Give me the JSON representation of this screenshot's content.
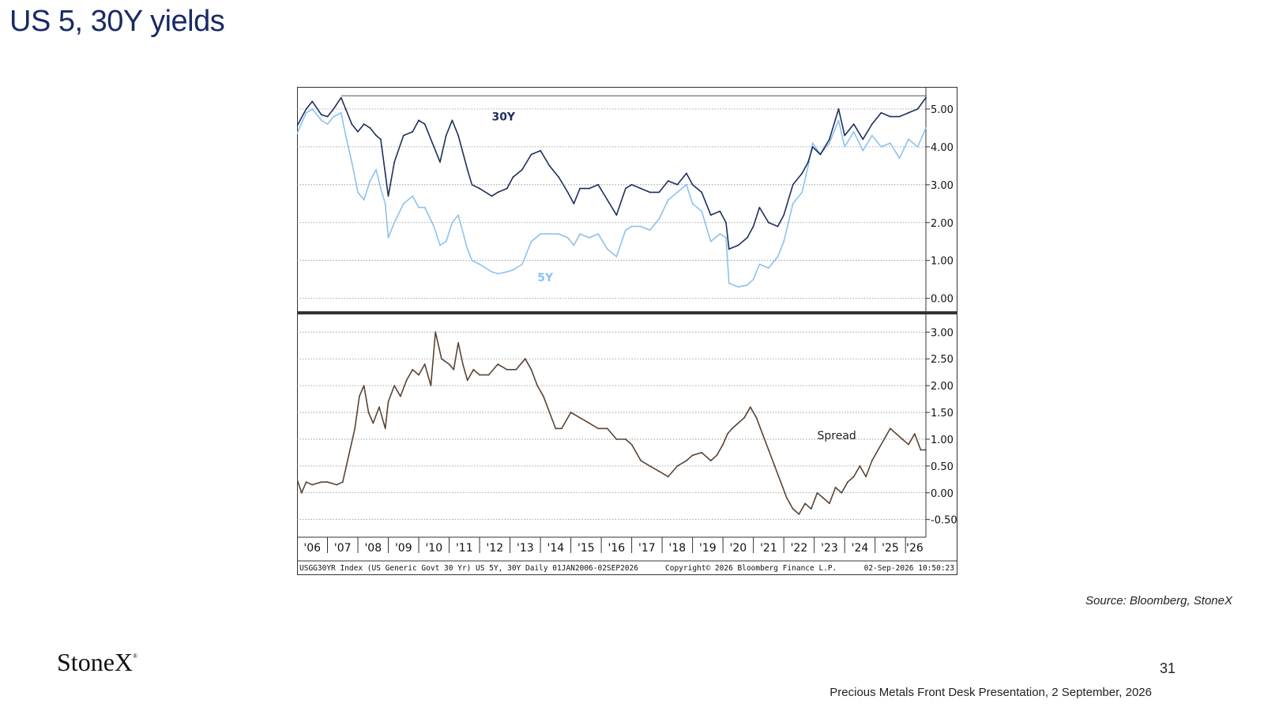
{
  "slide": {
    "title": "US 5, 30Y yields",
    "source": "Source: Bloomberg, StoneX",
    "logo_text": "StoneX",
    "logo_mark": "®",
    "page_number": "31",
    "footer": "Precious Metals Front Desk Presentation, 2 September, 2026"
  },
  "chart": {
    "footer_left": "USGG30YR Index (US Generic Govt 30 Yr) US 5Y, 30Y Daily 01JAN2006-02SEP2026",
    "footer_center": "Copyright© 2026 Bloomberg Finance L.P.",
    "footer_right": "02-Sep-2026 10:50:23"
  },
  "chart_data": [
    {
      "type": "line",
      "panel": "top",
      "x_range": [
        2006.0,
        2026.67
      ],
      "ylim": [
        -0.3,
        5.5
      ],
      "yticks": [
        0,
        1,
        2,
        3,
        4,
        5
      ],
      "ytick_labels": [
        "0.00",
        "1.00",
        "2.00",
        "3.00",
        "4.00",
        "5.00"
      ],
      "grid": true,
      "horizontal_reference": 5.35,
      "series": [
        {
          "name": "30Y",
          "color": "#1d2f5c",
          "x": [
            2006.0,
            2006.3,
            2006.5,
            2006.8,
            2007.0,
            2007.2,
            2007.45,
            2007.6,
            2007.8,
            2008.0,
            2008.2,
            2008.4,
            2008.6,
            2008.75,
            2008.9,
            2009.0,
            2009.2,
            2009.5,
            2009.8,
            2010.0,
            2010.2,
            2010.5,
            2010.7,
            2010.9,
            2011.1,
            2011.3,
            2011.6,
            2011.75,
            2012.0,
            2012.4,
            2012.6,
            2012.9,
            2013.1,
            2013.4,
            2013.7,
            2014.0,
            2014.3,
            2014.6,
            2014.9,
            2015.1,
            2015.3,
            2015.6,
            2015.9,
            2016.2,
            2016.5,
            2016.8,
            2017.0,
            2017.3,
            2017.6,
            2017.9,
            2018.2,
            2018.5,
            2018.8,
            2019.0,
            2019.3,
            2019.6,
            2019.9,
            2020.1,
            2020.2,
            2020.5,
            2020.8,
            2021.0,
            2021.2,
            2021.5,
            2021.8,
            2022.0,
            2022.3,
            2022.6,
            2022.8,
            2022.95,
            2023.2,
            2023.5,
            2023.8,
            2024.0,
            2024.3,
            2024.6,
            2024.9,
            2025.2,
            2025.5,
            2025.8,
            2026.1,
            2026.4,
            2026.67
          ],
          "values": [
            4.55,
            5.0,
            5.2,
            4.85,
            4.8,
            5.0,
            5.3,
            5.0,
            4.6,
            4.4,
            4.6,
            4.5,
            4.3,
            4.2,
            3.3,
            2.7,
            3.6,
            4.3,
            4.4,
            4.7,
            4.6,
            4.0,
            3.6,
            4.3,
            4.7,
            4.3,
            3.4,
            3.0,
            2.9,
            2.7,
            2.8,
            2.9,
            3.2,
            3.4,
            3.8,
            3.9,
            3.5,
            3.2,
            2.8,
            2.5,
            2.9,
            2.9,
            3.0,
            2.6,
            2.2,
            2.9,
            3.0,
            2.9,
            2.8,
            2.8,
            3.1,
            3.0,
            3.3,
            3.0,
            2.8,
            2.2,
            2.3,
            2.0,
            1.3,
            1.4,
            1.6,
            1.9,
            2.4,
            2.0,
            1.9,
            2.2,
            3.0,
            3.3,
            3.6,
            4.0,
            3.8,
            4.2,
            5.0,
            4.3,
            4.6,
            4.2,
            4.6,
            4.9,
            4.8,
            4.8,
            4.9,
            5.0,
            5.3
          ]
        },
        {
          "name": "5Y",
          "color": "#8cc2ee",
          "x": [
            2006.0,
            2006.3,
            2006.5,
            2006.8,
            2007.0,
            2007.2,
            2007.45,
            2007.6,
            2007.8,
            2008.0,
            2008.2,
            2008.4,
            2008.6,
            2008.75,
            2008.9,
            2009.0,
            2009.2,
            2009.5,
            2009.8,
            2010.0,
            2010.2,
            2010.5,
            2010.7,
            2010.9,
            2011.1,
            2011.3,
            2011.6,
            2011.75,
            2012.0,
            2012.4,
            2012.6,
            2012.9,
            2013.1,
            2013.4,
            2013.7,
            2014.0,
            2014.3,
            2014.6,
            2014.9,
            2015.1,
            2015.3,
            2015.6,
            2015.9,
            2016.2,
            2016.5,
            2016.8,
            2017.0,
            2017.3,
            2017.6,
            2017.9,
            2018.2,
            2018.5,
            2018.8,
            2019.0,
            2019.3,
            2019.6,
            2019.9,
            2020.1,
            2020.2,
            2020.5,
            2020.8,
            2021.0,
            2021.2,
            2021.5,
            2021.8,
            2022.0,
            2022.3,
            2022.6,
            2022.8,
            2022.95,
            2023.2,
            2023.5,
            2023.8,
            2024.0,
            2024.3,
            2024.6,
            2024.9,
            2025.2,
            2025.5,
            2025.8,
            2026.1,
            2026.4,
            2026.67
          ],
          "values": [
            4.35,
            4.9,
            5.0,
            4.7,
            4.6,
            4.8,
            4.9,
            4.3,
            3.6,
            2.8,
            2.6,
            3.1,
            3.4,
            2.9,
            2.5,
            1.6,
            2.0,
            2.5,
            2.7,
            2.4,
            2.4,
            1.9,
            1.4,
            1.5,
            2.0,
            2.2,
            1.3,
            1.0,
            0.9,
            0.7,
            0.65,
            0.7,
            0.75,
            0.9,
            1.5,
            1.7,
            1.7,
            1.7,
            1.6,
            1.4,
            1.7,
            1.6,
            1.7,
            1.3,
            1.1,
            1.8,
            1.9,
            1.9,
            1.8,
            2.1,
            2.6,
            2.8,
            3.0,
            2.5,
            2.3,
            1.5,
            1.7,
            1.6,
            0.4,
            0.3,
            0.35,
            0.5,
            0.9,
            0.8,
            1.1,
            1.5,
            2.5,
            2.8,
            3.5,
            4.1,
            3.8,
            4.1,
            4.7,
            4.0,
            4.4,
            3.9,
            4.3,
            4.0,
            4.1,
            3.7,
            4.2,
            4.0,
            4.5
          ]
        }
      ],
      "annotations": [
        {
          "text": "30Y",
          "x": 2012.4,
          "y": 4.7
        },
        {
          "text": "5Y",
          "x": 2013.9,
          "y": 0.45
        }
      ]
    },
    {
      "type": "line",
      "panel": "bottom",
      "x_range": [
        2006.0,
        2026.67
      ],
      "ylim": [
        -0.8,
        3.3
      ],
      "yticks": [
        -0.5,
        0,
        0.5,
        1,
        1.5,
        2,
        2.5,
        3
      ],
      "ytick_labels": [
        "-0.50",
        "0.00",
        "0.50",
        "1.00",
        "1.50",
        "2.00",
        "2.50",
        "3.00"
      ],
      "grid": true,
      "series": [
        {
          "name": "Spread",
          "color": "#5b4433",
          "x": [
            2006.0,
            2006.15,
            2006.3,
            2006.5,
            2006.8,
            2007.0,
            2007.3,
            2007.5,
            2007.7,
            2007.9,
            2008.05,
            2008.2,
            2008.35,
            2008.5,
            2008.7,
            2008.9,
            2009.0,
            2009.2,
            2009.4,
            2009.6,
            2009.8,
            2010.0,
            2010.2,
            2010.4,
            2010.55,
            2010.75,
            2011.0,
            2011.15,
            2011.3,
            2011.45,
            2011.6,
            2011.8,
            2012.0,
            2012.3,
            2012.6,
            2012.9,
            2013.2,
            2013.5,
            2013.7,
            2013.9,
            2014.1,
            2014.3,
            2014.5,
            2014.7,
            2015.0,
            2015.3,
            2015.6,
            2015.9,
            2016.2,
            2016.5,
            2016.8,
            2017.0,
            2017.3,
            2017.6,
            2017.9,
            2018.2,
            2018.5,
            2018.8,
            2019.0,
            2019.3,
            2019.6,
            2019.8,
            2020.0,
            2020.15,
            2020.3,
            2020.5,
            2020.7,
            2020.9,
            2021.1,
            2021.3,
            2021.5,
            2021.7,
            2021.9,
            2022.1,
            2022.3,
            2022.5,
            2022.7,
            2022.9,
            2023.1,
            2023.3,
            2023.5,
            2023.7,
            2023.9,
            2024.1,
            2024.3,
            2024.5,
            2024.7,
            2024.9,
            2025.1,
            2025.3,
            2025.5,
            2025.7,
            2025.9,
            2026.1,
            2026.3,
            2026.5,
            2026.67
          ],
          "values": [
            0.25,
            0.0,
            0.2,
            0.15,
            0.2,
            0.2,
            0.15,
            0.2,
            0.7,
            1.2,
            1.8,
            2.0,
            1.5,
            1.3,
            1.6,
            1.2,
            1.7,
            2.0,
            1.8,
            2.1,
            2.3,
            2.2,
            2.4,
            2.0,
            3.0,
            2.5,
            2.4,
            2.3,
            2.8,
            2.4,
            2.1,
            2.3,
            2.2,
            2.2,
            2.4,
            2.3,
            2.3,
            2.5,
            2.3,
            2.0,
            1.8,
            1.5,
            1.2,
            1.2,
            1.5,
            1.4,
            1.3,
            1.2,
            1.2,
            1.0,
            1.0,
            0.9,
            0.6,
            0.5,
            0.4,
            0.3,
            0.5,
            0.6,
            0.7,
            0.75,
            0.6,
            0.7,
            0.9,
            1.1,
            1.2,
            1.3,
            1.4,
            1.6,
            1.4,
            1.1,
            0.8,
            0.5,
            0.2,
            -0.1,
            -0.3,
            -0.4,
            -0.2,
            -0.3,
            0.0,
            -0.1,
            -0.2,
            0.1,
            0.0,
            0.2,
            0.3,
            0.5,
            0.3,
            0.6,
            0.8,
            1.0,
            1.2,
            1.1,
            1.0,
            0.9,
            1.1,
            0.8,
            0.8
          ]
        }
      ],
      "annotations": [
        {
          "text": "Spread",
          "x": 2023.1,
          "y": 1.0
        }
      ]
    }
  ],
  "x_axis": {
    "ticks": [
      "'06",
      "'07",
      "'08",
      "'09",
      "'10",
      "'11",
      "'12",
      "'13",
      "'14",
      "'15",
      "'16",
      "'17",
      "'18",
      "'19",
      "'20",
      "'21",
      "'22",
      "'23",
      "'24",
      "'25",
      "'26"
    ]
  }
}
